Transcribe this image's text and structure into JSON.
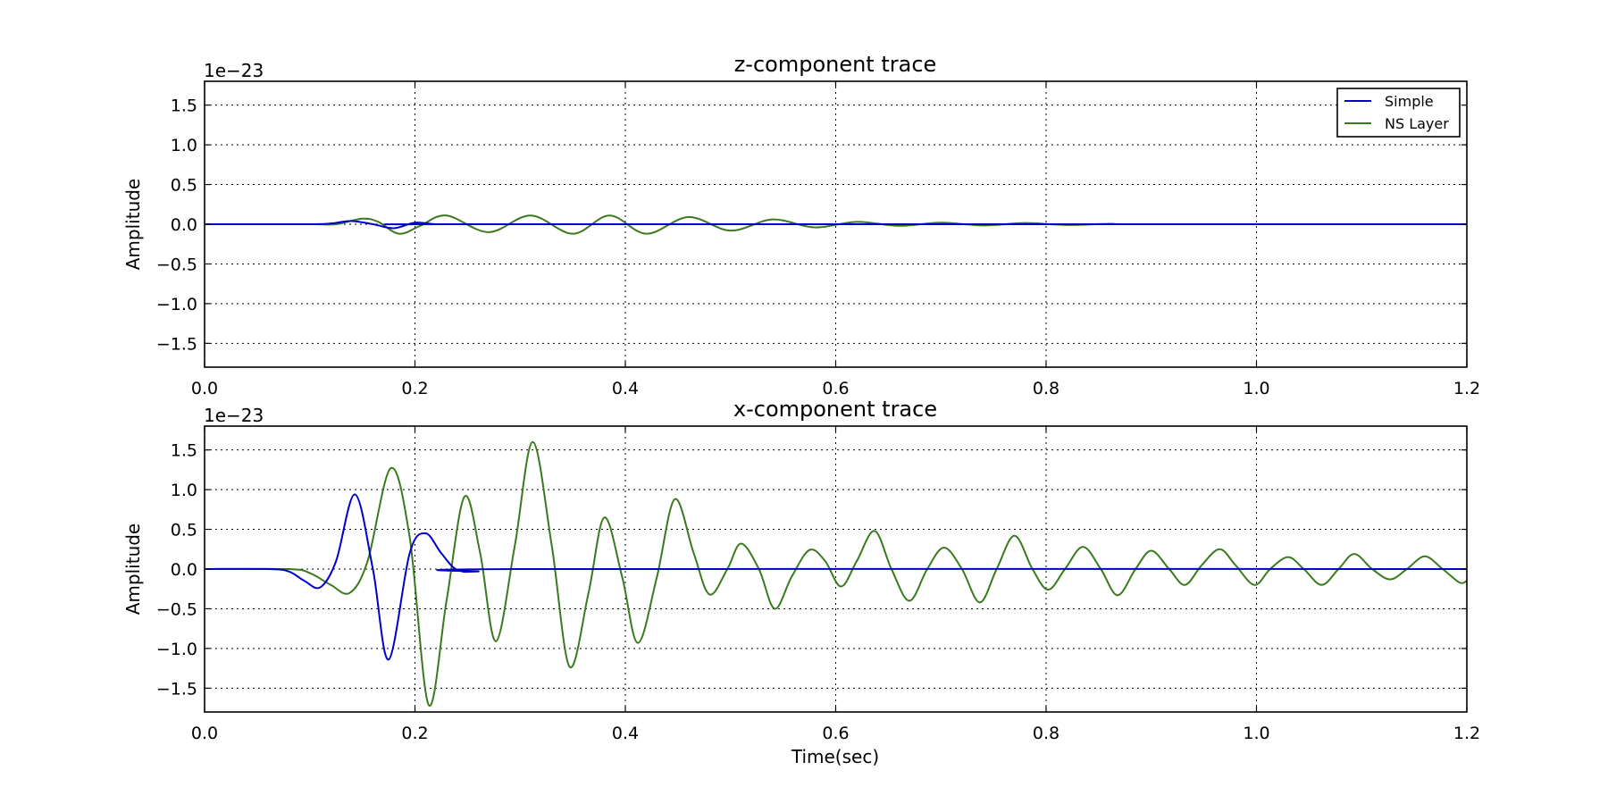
{
  "chart_data": [
    {
      "type": "line",
      "title": "z-component trace",
      "xlabel": "",
      "ylabel": "Amplitude",
      "y_offset_label": "1e−23",
      "xlim": [
        0.0,
        1.2
      ],
      "ylim": [
        -1.8,
        1.8
      ],
      "xticks": [
        0.0,
        0.2,
        0.4,
        0.6,
        0.8,
        1.0,
        1.2
      ],
      "xtick_labels": [
        "0.0",
        "0.2",
        "0.4",
        "0.6",
        "0.8",
        "1.0",
        "1.2"
      ],
      "yticks": [
        1.5,
        1.0,
        0.5,
        0.0,
        -0.5,
        -1.0,
        -1.5
      ],
      "ytick_labels": [
        "1.5",
        "1.0",
        "0.5",
        "0.0",
        "−0.5",
        "−1.0",
        "−1.5"
      ],
      "grid": true,
      "legend": {
        "position": "top-right",
        "entries": [
          "Simple",
          "NS Layer"
        ]
      },
      "series": [
        {
          "name": "Simple",
          "color": "#0000cc",
          "points": [
            [
              0.0,
              0
            ],
            [
              0.1,
              0
            ],
            [
              0.12,
              0.01
            ],
            [
              0.14,
              0.04
            ],
            [
              0.16,
              0.0
            ],
            [
              0.18,
              -0.05
            ],
            [
              0.2,
              0.02
            ],
            [
              0.22,
              0.0
            ],
            [
              0.25,
              0
            ],
            [
              1.2,
              0
            ]
          ]
        },
        {
          "name": "NS Layer",
          "color": "#3a7a1e",
          "points": [
            [
              0.0,
              0
            ],
            [
              0.1,
              0
            ],
            [
              0.125,
              0.0
            ],
            [
              0.15,
              0.07
            ],
            [
              0.165,
              0.03
            ],
            [
              0.185,
              -0.12
            ],
            [
              0.205,
              -0.02
            ],
            [
              0.23,
              0.11
            ],
            [
              0.27,
              -0.1
            ],
            [
              0.31,
              0.11
            ],
            [
              0.35,
              -0.12
            ],
            [
              0.385,
              0.11
            ],
            [
              0.42,
              -0.12
            ],
            [
              0.46,
              0.09
            ],
            [
              0.5,
              -0.08
            ],
            [
              0.54,
              0.06
            ],
            [
              0.58,
              -0.04
            ],
            [
              0.62,
              0.03
            ],
            [
              0.66,
              -0.02
            ],
            [
              0.7,
              0.02
            ],
            [
              0.74,
              -0.015
            ],
            [
              0.78,
              0.015
            ],
            [
              0.82,
              -0.01
            ],
            [
              0.86,
              0.005
            ],
            [
              0.9,
              0
            ],
            [
              1.2,
              0
            ]
          ]
        }
      ]
    },
    {
      "type": "line",
      "title": "x-component trace",
      "xlabel": "Time(sec)",
      "ylabel": "Amplitude",
      "y_offset_label": "1e−23",
      "xlim": [
        0.0,
        1.2
      ],
      "ylim": [
        -1.8,
        1.8
      ],
      "xticks": [
        0.0,
        0.2,
        0.4,
        0.6,
        0.8,
        1.0,
        1.2
      ],
      "xtick_labels": [
        "0.0",
        "0.2",
        "0.4",
        "0.6",
        "0.8",
        "1.0",
        "1.2"
      ],
      "yticks": [
        1.5,
        1.0,
        0.5,
        0.0,
        -0.5,
        -1.0,
        -1.5
      ],
      "ytick_labels": [
        "1.5",
        "1.0",
        "0.5",
        "0.0",
        "−0.5",
        "−1.0",
        "−1.5"
      ],
      "grid": true,
      "series": [
        {
          "name": "Simple",
          "color": "#0000cc",
          "points": [
            [
              0.0,
              0
            ],
            [
              0.06,
              0
            ],
            [
              0.08,
              -0.03
            ],
            [
              0.095,
              -0.15
            ],
            [
              0.11,
              -0.23
            ],
            [
              0.125,
              0.1
            ],
            [
              0.143,
              0.94
            ],
            [
              0.16,
              0.0
            ],
            [
              0.175,
              -1.14
            ],
            [
              0.195,
              0.2
            ],
            [
              0.21,
              0.45
            ],
            [
              0.225,
              0.2
            ],
            [
              0.24,
              -0.01
            ],
            [
              0.26,
              -0.03
            ],
            [
              0.3,
              0
            ],
            [
              1.2,
              0
            ]
          ]
        },
        {
          "name": "NS Layer",
          "color": "#3a7a1e",
          "points": [
            [
              0.0,
              0
            ],
            [
              0.08,
              0
            ],
            [
              0.1,
              -0.05
            ],
            [
              0.12,
              -0.2
            ],
            [
              0.138,
              -0.3
            ],
            [
              0.155,
              0.1
            ],
            [
              0.177,
              1.27
            ],
            [
              0.195,
              0.4
            ],
            [
              0.213,
              -1.71
            ],
            [
              0.23,
              -0.4
            ],
            [
              0.247,
              0.91
            ],
            [
              0.262,
              0.2
            ],
            [
              0.277,
              -0.91
            ],
            [
              0.295,
              0.3
            ],
            [
              0.312,
              1.6
            ],
            [
              0.33,
              0.3
            ],
            [
              0.347,
              -1.23
            ],
            [
              0.365,
              -0.3
            ],
            [
              0.38,
              0.65
            ],
            [
              0.397,
              -0.1
            ],
            [
              0.412,
              -0.93
            ],
            [
              0.43,
              -0.1
            ],
            [
              0.447,
              0.88
            ],
            [
              0.465,
              0.2
            ],
            [
              0.48,
              -0.32
            ],
            [
              0.497,
              0.0
            ],
            [
              0.51,
              0.32
            ],
            [
              0.527,
              0.0
            ],
            [
              0.542,
              -0.5
            ],
            [
              0.558,
              -0.1
            ],
            [
              0.575,
              0.24
            ],
            [
              0.59,
              0.1
            ],
            [
              0.605,
              -0.22
            ],
            [
              0.62,
              0.1
            ],
            [
              0.637,
              0.48
            ],
            [
              0.653,
              0.0
            ],
            [
              0.67,
              -0.4
            ],
            [
              0.687,
              0.0
            ],
            [
              0.703,
              0.27
            ],
            [
              0.72,
              0.0
            ],
            [
              0.737,
              -0.42
            ],
            [
              0.753,
              0.0
            ],
            [
              0.77,
              0.42
            ],
            [
              0.787,
              0.0
            ],
            [
              0.802,
              -0.26
            ],
            [
              0.818,
              0.0
            ],
            [
              0.835,
              0.28
            ],
            [
              0.852,
              0.0
            ],
            [
              0.868,
              -0.33
            ],
            [
              0.885,
              0.0
            ],
            [
              0.9,
              0.23
            ],
            [
              0.917,
              0.0
            ],
            [
              0.932,
              -0.2
            ],
            [
              0.948,
              0.05
            ],
            [
              0.965,
              0.25
            ],
            [
              0.98,
              0.05
            ],
            [
              0.998,
              -0.2
            ],
            [
              1.013,
              0.0
            ],
            [
              1.03,
              0.15
            ],
            [
              1.045,
              0.0
            ],
            [
              1.062,
              -0.2
            ],
            [
              1.078,
              0.0
            ],
            [
              1.093,
              0.19
            ],
            [
              1.11,
              0.0
            ],
            [
              1.127,
              -0.13
            ],
            [
              1.143,
              0.0
            ],
            [
              1.16,
              0.16
            ],
            [
              1.177,
              0.0
            ],
            [
              1.193,
              -0.17
            ],
            [
              1.2,
              -0.15
            ]
          ]
        }
      ]
    }
  ]
}
